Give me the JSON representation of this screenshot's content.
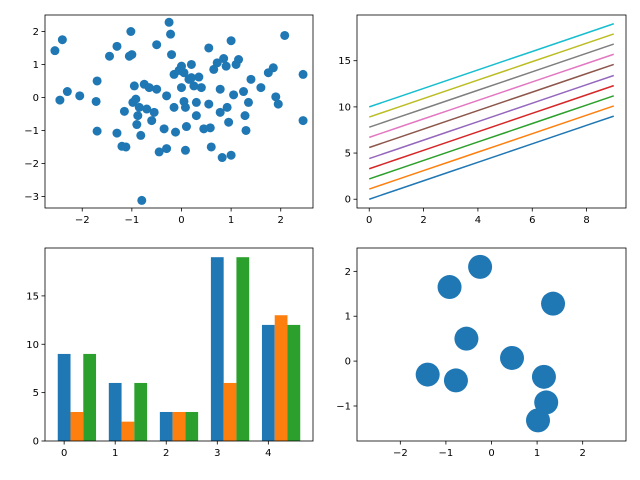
{
  "chart_data": [
    {
      "type": "scatter",
      "title": "",
      "xlabel": "",
      "ylabel": "",
      "xlim": [
        -2.75,
        2.65
      ],
      "ylim": [
        -3.35,
        2.5
      ],
      "xticks": [
        -2,
        -1,
        0,
        1,
        2
      ],
      "yticks": [
        -3,
        -2,
        -1,
        0,
        1,
        2
      ],
      "grid": false,
      "color": "#1f77b4",
      "points": [
        [
          -2.55,
          1.42
        ],
        [
          -2.4,
          1.75
        ],
        [
          -2.45,
          -0.08
        ],
        [
          -2.3,
          0.18
        ],
        [
          -2.05,
          0.05
        ],
        [
          -1.7,
          0.5
        ],
        [
          -1.72,
          -0.12
        ],
        [
          -1.7,
          -1.02
        ],
        [
          -1.45,
          1.25
        ],
        [
          -1.3,
          1.55
        ],
        [
          -1.3,
          -1.08
        ],
        [
          -1.2,
          -1.48
        ],
        [
          -1.12,
          -1.5
        ],
        [
          -1.15,
          -0.42
        ],
        [
          -1.05,
          1.25
        ],
        [
          -1.0,
          1.3
        ],
        [
          -1.02,
          2.0
        ],
        [
          -0.95,
          0.35
        ],
        [
          -0.98,
          -0.15
        ],
        [
          -0.92,
          -0.05
        ],
        [
          -0.88,
          -0.55
        ],
        [
          -0.85,
          -0.3
        ],
        [
          -0.9,
          -0.82
        ],
        [
          -0.82,
          -1.15
        ],
        [
          -0.75,
          0.4
        ],
        [
          -0.7,
          -0.35
        ],
        [
          -0.65,
          0.3
        ],
        [
          -0.6,
          -0.7
        ],
        [
          -0.55,
          -0.45
        ],
        [
          -0.5,
          0.25
        ],
        [
          -0.5,
          1.6
        ],
        [
          -0.45,
          -1.65
        ],
        [
          -0.35,
          -0.95
        ],
        [
          -0.3,
          -1.55
        ],
        [
          -0.25,
          2.28
        ],
        [
          -0.22,
          1.92
        ],
        [
          -0.2,
          1.3
        ],
        [
          -0.15,
          0.7
        ],
        [
          -0.15,
          -0.3
        ],
        [
          -0.12,
          -1.05
        ],
        [
          -0.05,
          0.82
        ],
        [
          0.0,
          0.95
        ],
        [
          0.05,
          0.75
        ],
        [
          0.05,
          -0.12
        ],
        [
          0.08,
          -0.3
        ],
        [
          0.1,
          -0.88
        ],
        [
          0.08,
          -1.6
        ],
        [
          0.15,
          0.55
        ],
        [
          0.2,
          1.0
        ],
        [
          0.25,
          0.35
        ],
        [
          0.3,
          -0.15
        ],
        [
          0.35,
          0.62
        ],
        [
          0.4,
          0.3
        ],
        [
          0.45,
          -0.95
        ],
        [
          0.55,
          1.5
        ],
        [
          0.55,
          -0.2
        ],
        [
          0.58,
          -0.92
        ],
        [
          0.6,
          -1.5
        ],
        [
          0.65,
          0.85
        ],
        [
          0.72,
          1.05
        ],
        [
          0.78,
          0.25
        ],
        [
          0.78,
          -0.45
        ],
        [
          0.82,
          -1.82
        ],
        [
          0.85,
          1.18
        ],
        [
          0.9,
          0.95
        ],
        [
          0.92,
          -0.3
        ],
        [
          0.95,
          -0.75
        ],
        [
          1.0,
          1.72
        ],
        [
          1.0,
          -1.75
        ],
        [
          1.05,
          0.08
        ],
        [
          1.1,
          1.0
        ],
        [
          1.15,
          1.15
        ],
        [
          1.25,
          0.18
        ],
        [
          1.28,
          -0.55
        ],
        [
          1.3,
          -1.0
        ],
        [
          1.35,
          -0.15
        ],
        [
          1.4,
          0.55
        ],
        [
          1.6,
          0.3
        ],
        [
          1.75,
          0.75
        ],
        [
          1.85,
          0.9
        ],
        [
          1.9,
          0.02
        ],
        [
          1.95,
          -0.2
        ],
        [
          2.08,
          1.88
        ],
        [
          2.45,
          0.7
        ],
        [
          2.45,
          -0.7
        ],
        [
          -0.8,
          -3.12
        ],
        [
          0.0,
          0.3
        ],
        [
          0.2,
          0.6
        ],
        [
          -0.3,
          0.05
        ],
        [
          0.3,
          -0.55
        ]
      ]
    },
    {
      "type": "line",
      "title": "",
      "xlabel": "",
      "ylabel": "",
      "xlim": [
        -0.45,
        9.45
      ],
      "ylim": [
        -0.95,
        19.95
      ],
      "xticks": [
        0,
        2,
        4,
        6,
        8
      ],
      "yticks": [
        0,
        5,
        10,
        15
      ],
      "grid": false,
      "x": [
        0,
        1,
        2,
        3,
        4,
        5,
        6,
        7,
        8,
        9
      ],
      "series": [
        {
          "color": "#1f77b4",
          "values": [
            0,
            1,
            2,
            3,
            4,
            5,
            6,
            7,
            8,
            9
          ]
        },
        {
          "color": "#ff7f0e",
          "values": [
            1.1,
            2.1,
            3.1,
            4.1,
            5.1,
            6.1,
            7.1,
            8.1,
            9.1,
            10.1
          ]
        },
        {
          "color": "#2ca02c",
          "values": [
            2.2,
            3.2,
            4.2,
            5.2,
            6.2,
            7.2,
            8.2,
            9.2,
            10.2,
            11.2
          ]
        },
        {
          "color": "#d62728",
          "values": [
            3.3,
            4.3,
            5.3,
            6.3,
            7.3,
            8.3,
            9.3,
            10.3,
            11.3,
            12.3
          ]
        },
        {
          "color": "#9467bd",
          "values": [
            4.4,
            5.4,
            6.4,
            7.4,
            8.4,
            9.4,
            10.4,
            11.4,
            12.4,
            13.4
          ]
        },
        {
          "color": "#8c564b",
          "values": [
            5.6,
            6.6,
            7.6,
            8.6,
            9.6,
            10.6,
            11.6,
            12.6,
            13.6,
            14.6
          ]
        },
        {
          "color": "#e377c2",
          "values": [
            6.7,
            7.7,
            8.7,
            9.7,
            10.7,
            11.7,
            12.7,
            13.7,
            14.7,
            15.7
          ]
        },
        {
          "color": "#7f7f7f",
          "values": [
            7.8,
            8.8,
            9.8,
            10.8,
            11.8,
            12.8,
            13.8,
            14.8,
            15.8,
            16.8
          ]
        },
        {
          "color": "#bcbd22",
          "values": [
            8.9,
            9.9,
            10.9,
            11.9,
            12.9,
            13.9,
            14.9,
            15.9,
            16.9,
            17.9
          ]
        },
        {
          "color": "#17becf",
          "values": [
            10,
            11,
            12,
            13,
            14,
            15,
            16,
            17,
            18,
            19
          ]
        }
      ]
    },
    {
      "type": "bar",
      "title": "",
      "xlabel": "",
      "ylabel": "",
      "xlim": [
        -0.375,
        4.875
      ],
      "ylim": [
        0,
        19.95
      ],
      "xticks": [
        0,
        1,
        2,
        3,
        4
      ],
      "yticks": [
        0,
        5,
        10,
        15
      ],
      "grid": false,
      "categories": [
        "0",
        "1",
        "2",
        "3",
        "4"
      ],
      "bar_width": 0.25,
      "series": [
        {
          "color": "#1f77b4",
          "values": [
            9,
            6,
            3,
            19,
            12
          ]
        },
        {
          "color": "#ff7f0e",
          "values": [
            3,
            2,
            3,
            6,
            13
          ]
        },
        {
          "color": "#2ca02c",
          "values": [
            9,
            6,
            3,
            19,
            12
          ]
        }
      ]
    },
    {
      "type": "scatter",
      "title": "",
      "xlabel": "",
      "ylabel": "",
      "xlim": [
        -2.95,
        2.95
      ],
      "ylim": [
        -1.78,
        2.52
      ],
      "xticks": [
        -2,
        -1,
        0,
        1,
        2
      ],
      "yticks": [
        -1,
        0,
        1,
        2
      ],
      "grid": false,
      "color": "#1f77b4",
      "marker_size": "large",
      "points": [
        [
          -0.92,
          1.65
        ],
        [
          -0.25,
          2.1
        ],
        [
          1.35,
          1.28
        ],
        [
          -0.55,
          0.5
        ],
        [
          0.45,
          0.07
        ],
        [
          -1.4,
          -0.3
        ],
        [
          -0.78,
          -0.43
        ],
        [
          1.15,
          -0.35
        ],
        [
          1.2,
          -0.92
        ],
        [
          1.02,
          -1.32
        ]
      ]
    }
  ]
}
